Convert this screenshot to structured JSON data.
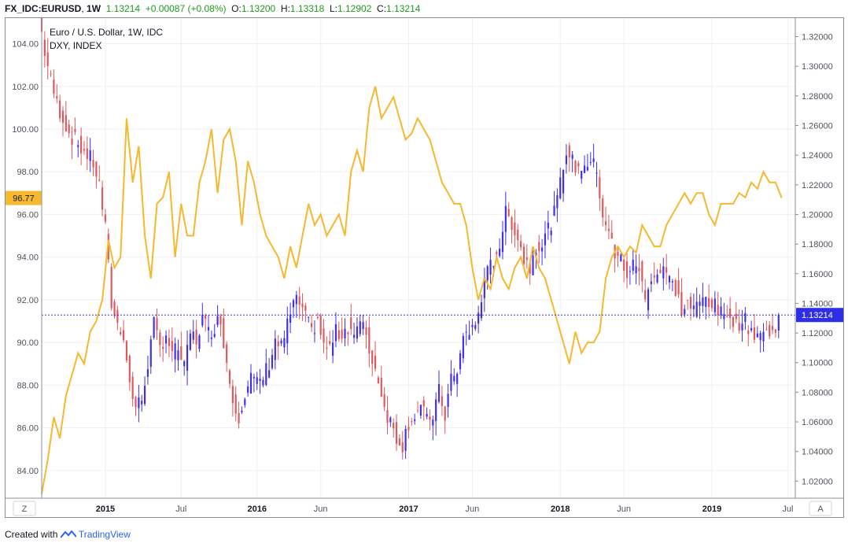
{
  "header": {
    "symbol": "FX_IDC:EURUSD",
    "interval": "1W",
    "last": "1.13214",
    "change": "+0.00087 (+0.08%)",
    "o_label": "O:",
    "o_value": "1.13200",
    "h_label": "H:",
    "h_value": "1.13318",
    "l_label": "L:",
    "l_value": "1.12902",
    "c_label": "C:",
    "c_value": "1.13214"
  },
  "legend": {
    "line1": "Euro / U.S. Dollar, 1W, IDC",
    "line2": "DXY, INDEX"
  },
  "bottom_bar": {
    "left_button": "Z",
    "right_button": "A"
  },
  "footer": {
    "created_with": "Created with",
    "brand": "TradingView"
  },
  "colors": {
    "up": "#3f2ef0",
    "down": "#e0575b",
    "dxy": "#f5b82e",
    "price_tag": "#2e2ee6",
    "dxy_tag": "#f5b82e"
  },
  "chart_data": {
    "type": "candlestick+line",
    "series": [
      {
        "name": "Euro / U.S. Dollar, 1W, IDC",
        "axis": "right"
      },
      {
        "name": "DXY, INDEX",
        "axis": "left"
      }
    ],
    "left_axis": {
      "ticks": [
        "84.00",
        "86.00",
        "88.00",
        "90.00",
        "92.00",
        "94.00",
        "96.00",
        "98.00",
        "100.00",
        "102.00",
        "104.00"
      ],
      "range": [
        82.7,
        105.2
      ],
      "current": "96.77"
    },
    "right_axis": {
      "ticks": [
        "1.02000",
        "1.04000",
        "1.06000",
        "1.08000",
        "1.10000",
        "1.12000",
        "1.14000",
        "1.16000",
        "1.18000",
        "1.20000",
        "1.22000",
        "1.24000",
        "1.26000",
        "1.28000",
        "1.30000",
        "1.32000"
      ],
      "range": [
        1.0085,
        1.3325
      ],
      "current": "1.13214"
    },
    "x_axis": {
      "labels": [
        "2015",
        "Jul",
        "2016",
        "Jun",
        "2017",
        "Jun",
        "2018",
        "Jun",
        "2019",
        "Jul"
      ],
      "start": 2014.58,
      "end": 2019.55
    },
    "eurusd_path": [
      [
        2014.58,
        1.335
      ],
      [
        2014.62,
        1.31
      ],
      [
        2014.66,
        1.29
      ],
      [
        2014.7,
        1.275
      ],
      [
        2014.74,
        1.265
      ],
      [
        2014.78,
        1.255
      ],
      [
        2014.82,
        1.25
      ],
      [
        2014.86,
        1.245
      ],
      [
        2014.9,
        1.24
      ],
      [
        2014.94,
        1.235
      ],
      [
        2014.98,
        1.22
      ],
      [
        2015.02,
        1.19
      ],
      [
        2015.06,
        1.14
      ],
      [
        2015.1,
        1.125
      ],
      [
        2015.14,
        1.12
      ],
      [
        2015.18,
        1.085
      ],
      [
        2015.22,
        1.07
      ],
      [
        2015.26,
        1.075
      ],
      [
        2015.3,
        1.1
      ],
      [
        2015.34,
        1.125
      ],
      [
        2015.38,
        1.11
      ],
      [
        2015.42,
        1.12
      ],
      [
        2015.46,
        1.105
      ],
      [
        2015.5,
        1.11
      ],
      [
        2015.54,
        1.095
      ],
      [
        2015.58,
        1.12
      ],
      [
        2015.62,
        1.115
      ],
      [
        2015.66,
        1.13
      ],
      [
        2015.7,
        1.12
      ],
      [
        2015.74,
        1.125
      ],
      [
        2015.78,
        1.13
      ],
      [
        2015.82,
        1.1
      ],
      [
        2015.86,
        1.075
      ],
      [
        2015.9,
        1.065
      ],
      [
        2015.94,
        1.08
      ],
      [
        2015.98,
        1.09
      ],
      [
        2016.02,
        1.085
      ],
      [
        2016.06,
        1.09
      ],
      [
        2016.1,
        1.1
      ],
      [
        2016.14,
        1.115
      ],
      [
        2016.18,
        1.11
      ],
      [
        2016.22,
        1.125
      ],
      [
        2016.26,
        1.14
      ],
      [
        2016.3,
        1.14
      ],
      [
        2016.34,
        1.13
      ],
      [
        2016.38,
        1.12
      ],
      [
        2016.42,
        1.13
      ],
      [
        2016.46,
        1.11
      ],
      [
        2016.5,
        1.11
      ],
      [
        2016.54,
        1.12
      ],
      [
        2016.58,
        1.12
      ],
      [
        2016.62,
        1.125
      ],
      [
        2016.66,
        1.12
      ],
      [
        2016.7,
        1.125
      ],
      [
        2016.74,
        1.12
      ],
      [
        2016.78,
        1.1
      ],
      [
        2016.82,
        1.09
      ],
      [
        2016.86,
        1.07
      ],
      [
        2016.9,
        1.06
      ],
      [
        2016.94,
        1.05
      ],
      [
        2016.98,
        1.045
      ],
      [
        2017.02,
        1.06
      ],
      [
        2017.06,
        1.065
      ],
      [
        2017.1,
        1.07
      ],
      [
        2017.14,
        1.06
      ],
      [
        2017.18,
        1.065
      ],
      [
        2017.22,
        1.08
      ],
      [
        2017.26,
        1.065
      ],
      [
        2017.3,
        1.09
      ],
      [
        2017.34,
        1.09
      ],
      [
        2017.38,
        1.12
      ],
      [
        2017.42,
        1.12
      ],
      [
        2017.46,
        1.125
      ],
      [
        2017.5,
        1.145
      ],
      [
        2017.54,
        1.16
      ],
      [
        2017.58,
        1.17
      ],
      [
        2017.62,
        1.18
      ],
      [
        2017.66,
        1.2
      ],
      [
        2017.7,
        1.195
      ],
      [
        2017.74,
        1.185
      ],
      [
        2017.78,
        1.17
      ],
      [
        2017.82,
        1.165
      ],
      [
        2017.86,
        1.18
      ],
      [
        2017.9,
        1.18
      ],
      [
        2017.94,
        1.19
      ],
      [
        2017.98,
        1.2
      ],
      [
        2018.02,
        1.22
      ],
      [
        2018.06,
        1.245
      ],
      [
        2018.1,
        1.235
      ],
      [
        2018.14,
        1.23
      ],
      [
        2018.18,
        1.235
      ],
      [
        2018.22,
        1.235
      ],
      [
        2018.26,
        1.23
      ],
      [
        2018.3,
        1.2
      ],
      [
        2018.34,
        1.19
      ],
      [
        2018.38,
        1.17
      ],
      [
        2018.42,
        1.17
      ],
      [
        2018.46,
        1.16
      ],
      [
        2018.5,
        1.165
      ],
      [
        2018.54,
        1.165
      ],
      [
        2018.58,
        1.14
      ],
      [
        2018.62,
        1.16
      ],
      [
        2018.66,
        1.16
      ],
      [
        2018.7,
        1.165
      ],
      [
        2018.74,
        1.155
      ],
      [
        2018.78,
        1.15
      ],
      [
        2018.82,
        1.135
      ],
      [
        2018.86,
        1.14
      ],
      [
        2018.9,
        1.135
      ],
      [
        2018.94,
        1.14
      ],
      [
        2018.98,
        1.145
      ],
      [
        2019.02,
        1.14
      ],
      [
        2019.06,
        1.135
      ],
      [
        2019.1,
        1.13
      ],
      [
        2019.14,
        1.135
      ],
      [
        2019.18,
        1.125
      ],
      [
        2019.22,
        1.13
      ],
      [
        2019.26,
        1.125
      ],
      [
        2019.3,
        1.12
      ],
      [
        2019.34,
        1.12
      ],
      [
        2019.38,
        1.12
      ],
      [
        2019.42,
        1.12
      ],
      [
        2019.46,
        1.13214
      ]
    ],
    "dxy_path": [
      [
        2014.58,
        82.9
      ],
      [
        2014.62,
        84.5
      ],
      [
        2014.66,
        86.5
      ],
      [
        2014.7,
        85.5
      ],
      [
        2014.74,
        87.5
      ],
      [
        2014.78,
        88.5
      ],
      [
        2014.82,
        89.5
      ],
      [
        2014.86,
        89.0
      ],
      [
        2014.9,
        90.5
      ],
      [
        2014.94,
        91.0
      ],
      [
        2014.98,
        92.0
      ],
      [
        2015.02,
        94.8
      ],
      [
        2015.06,
        93.5
      ],
      [
        2015.1,
        94.0
      ],
      [
        2015.14,
        100.5
      ],
      [
        2015.18,
        97.5
      ],
      [
        2015.22,
        99.2
      ],
      [
        2015.26,
        95.0
      ],
      [
        2015.3,
        93.0
      ],
      [
        2015.34,
        96.5
      ],
      [
        2015.38,
        96.8
      ],
      [
        2015.42,
        98.0
      ],
      [
        2015.46,
        94.0
      ],
      [
        2015.5,
        96.5
      ],
      [
        2015.54,
        95.0
      ],
      [
        2015.58,
        95.0
      ],
      [
        2015.62,
        97.5
      ],
      [
        2015.66,
        98.5
      ],
      [
        2015.7,
        100.0
      ],
      [
        2015.74,
        97.0
      ],
      [
        2015.78,
        99.5
      ],
      [
        2015.82,
        100.0
      ],
      [
        2015.86,
        98.5
      ],
      [
        2015.9,
        95.5
      ],
      [
        2015.94,
        98.5
      ],
      [
        2015.98,
        97.5
      ],
      [
        2016.02,
        96.0
      ],
      [
        2016.06,
        95.0
      ],
      [
        2016.1,
        94.5
      ],
      [
        2016.14,
        94.0
      ],
      [
        2016.18,
        93.0
      ],
      [
        2016.22,
        94.5
      ],
      [
        2016.26,
        93.5
      ],
      [
        2016.3,
        95.0
      ],
      [
        2016.34,
        96.5
      ],
      [
        2016.38,
        95.5
      ],
      [
        2016.42,
        96.0
      ],
      [
        2016.46,
        95.0
      ],
      [
        2016.5,
        95.5
      ],
      [
        2016.54,
        96.0
      ],
      [
        2016.58,
        95.0
      ],
      [
        2016.62,
        98.0
      ],
      [
        2016.66,
        99.0
      ],
      [
        2016.7,
        98.0
      ],
      [
        2016.74,
        101.0
      ],
      [
        2016.78,
        102.0
      ],
      [
        2016.82,
        100.5
      ],
      [
        2016.86,
        101.0
      ],
      [
        2016.9,
        101.5
      ],
      [
        2016.94,
        100.5
      ],
      [
        2016.98,
        99.5
      ],
      [
        2017.02,
        99.8
      ],
      [
        2017.06,
        100.5
      ],
      [
        2017.1,
        100.0
      ],
      [
        2017.14,
        99.5
      ],
      [
        2017.18,
        98.5
      ],
      [
        2017.22,
        97.5
      ],
      [
        2017.26,
        97.0
      ],
      [
        2017.3,
        96.5
      ],
      [
        2017.34,
        96.5
      ],
      [
        2017.38,
        95.5
      ],
      [
        2017.42,
        93.5
      ],
      [
        2017.46,
        92.0
      ],
      [
        2017.5,
        93.0
      ],
      [
        2017.54,
        92.5
      ],
      [
        2017.58,
        94.0
      ],
      [
        2017.62,
        93.0
      ],
      [
        2017.66,
        92.5
      ],
      [
        2017.7,
        93.5
      ],
      [
        2017.74,
        94.0
      ],
      [
        2017.78,
        93.0
      ],
      [
        2017.82,
        94.5
      ],
      [
        2017.86,
        93.5
      ],
      [
        2017.9,
        93.0
      ],
      [
        2017.94,
        92.0
      ],
      [
        2017.98,
        91.0
      ],
      [
        2018.02,
        90.0
      ],
      [
        2018.06,
        89.0
      ],
      [
        2018.1,
        90.5
      ],
      [
        2018.14,
        89.5
      ],
      [
        2018.18,
        90.0
      ],
      [
        2018.22,
        90.0
      ],
      [
        2018.26,
        90.5
      ],
      [
        2018.3,
        93.0
      ],
      [
        2018.34,
        94.0
      ],
      [
        2018.38,
        94.5
      ],
      [
        2018.42,
        94.0
      ],
      [
        2018.46,
        94.5
      ],
      [
        2018.5,
        94.2
      ],
      [
        2018.54,
        95.5
      ],
      [
        2018.58,
        95.0
      ],
      [
        2018.62,
        94.5
      ],
      [
        2018.66,
        94.5
      ],
      [
        2018.7,
        95.5
      ],
      [
        2018.74,
        96.0
      ],
      [
        2018.78,
        96.5
      ],
      [
        2018.82,
        97.0
      ],
      [
        2018.86,
        96.5
      ],
      [
        2018.9,
        97.0
      ],
      [
        2018.94,
        97.0
      ],
      [
        2018.98,
        96.0
      ],
      [
        2019.02,
        95.5
      ],
      [
        2019.06,
        96.5
      ],
      [
        2019.1,
        96.5
      ],
      [
        2019.14,
        96.5
      ],
      [
        2019.18,
        97.0
      ],
      [
        2019.22,
        96.8
      ],
      [
        2019.26,
        97.5
      ],
      [
        2019.3,
        97.2
      ],
      [
        2019.34,
        98.0
      ],
      [
        2019.38,
        97.5
      ],
      [
        2019.42,
        97.5
      ],
      [
        2019.46,
        96.77
      ]
    ]
  }
}
